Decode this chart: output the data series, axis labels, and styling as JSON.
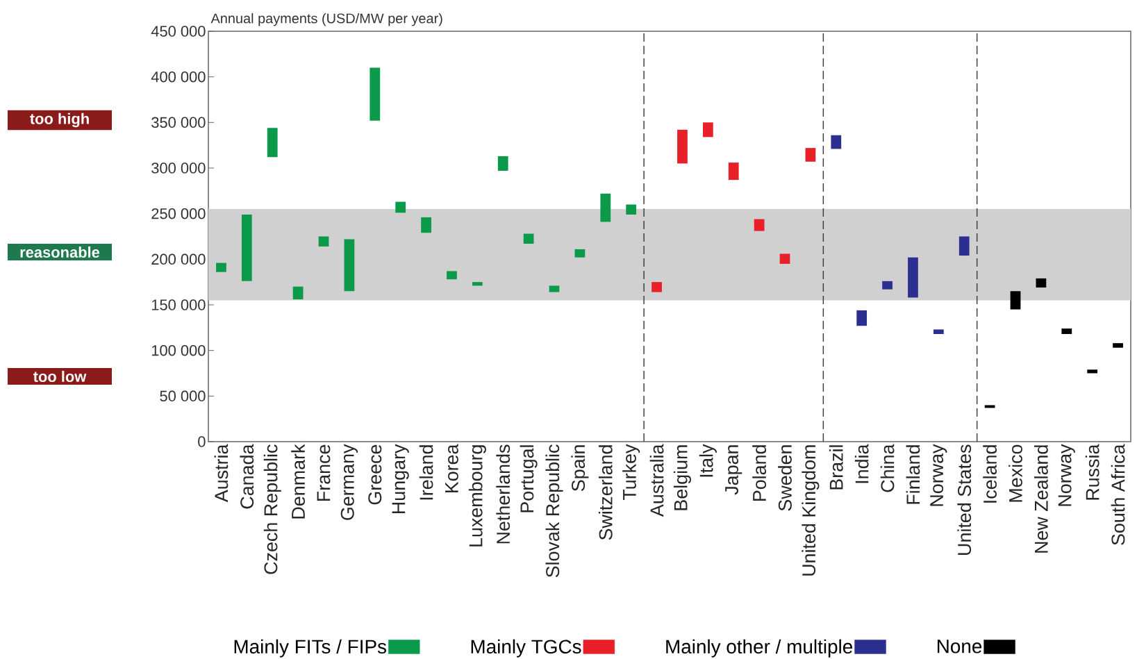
{
  "chart_data": {
    "type": "bar",
    "ylabel": "Annual payments (USD/MW per year)",
    "categories": [
      "Austria",
      "Canada",
      "Czech Republic",
      "Denmark",
      "France",
      "Germany",
      "Greece",
      "Hungary",
      "Ireland",
      "Korea",
      "Luxembourg",
      "Netherlands",
      "Portugal",
      "Slovak Republic",
      "Spain",
      "Switzerland",
      "Turkey",
      "Australia",
      "Belgium",
      "Italy",
      "Japan",
      "Poland",
      "Sweden",
      "United Kingdom",
      "Brazil",
      "India",
      "China",
      "Finland",
      "Norway",
      "United States",
      "Iceland",
      "Mexico",
      "New Zealand",
      "Norway",
      "Russia",
      "South Africa"
    ],
    "series": [
      {
        "name": "Mainly FITs / FIPs",
        "color": "#0a9a4a",
        "base": [
          186000,
          176000,
          312000,
          156000,
          214000,
          165000,
          352000,
          251000,
          229000,
          178000,
          171000,
          297000,
          217000,
          164000,
          202000,
          241000,
          249000,
          null,
          null,
          null,
          null,
          null,
          null,
          null,
          null,
          null,
          null,
          null,
          null,
          null,
          null,
          null,
          null,
          null,
          null,
          null
        ],
        "values": [
          10000,
          73000,
          32000,
          14000,
          11000,
          57000,
          58000,
          12000,
          17000,
          9000,
          4000,
          16000,
          11000,
          7000,
          9000,
          31000,
          11000,
          null,
          null,
          null,
          null,
          null,
          null,
          null,
          null,
          null,
          null,
          null,
          null,
          null,
          null,
          null,
          null,
          null,
          null,
          null
        ]
      },
      {
        "name": "Mainly TGCs",
        "color": "#e8202a",
        "base": [
          null,
          null,
          null,
          null,
          null,
          null,
          null,
          null,
          null,
          null,
          null,
          null,
          null,
          null,
          null,
          null,
          null,
          164000,
          305000,
          334000,
          287000,
          231000,
          195000,
          307000,
          null,
          null,
          null,
          null,
          null,
          null,
          null,
          null,
          null,
          null,
          null,
          null
        ],
        "values": [
          null,
          null,
          null,
          null,
          null,
          null,
          null,
          null,
          null,
          null,
          null,
          null,
          null,
          null,
          null,
          null,
          null,
          11000,
          37000,
          16000,
          19000,
          13000,
          11000,
          15000,
          null,
          null,
          null,
          null,
          null,
          null,
          null,
          null,
          null,
          null,
          null,
          null
        ]
      },
      {
        "name": "Mainly other / multiple",
        "color": "#2b2f8f",
        "base": [
          null,
          null,
          null,
          null,
          null,
          null,
          null,
          null,
          null,
          null,
          null,
          null,
          null,
          null,
          null,
          null,
          null,
          null,
          null,
          null,
          null,
          null,
          null,
          null,
          321000,
          127000,
          167000,
          158000,
          118000,
          204000,
          null,
          null,
          null,
          null,
          null,
          null
        ],
        "values": [
          null,
          null,
          null,
          null,
          null,
          null,
          null,
          null,
          null,
          null,
          null,
          null,
          null,
          null,
          null,
          null,
          null,
          null,
          null,
          null,
          null,
          null,
          null,
          null,
          15000,
          17000,
          9000,
          44000,
          5000,
          21000,
          null,
          null,
          null,
          null,
          null,
          null
        ]
      },
      {
        "name": "None",
        "color": "#000000",
        "base": [
          null,
          null,
          null,
          null,
          null,
          null,
          null,
          null,
          null,
          null,
          null,
          null,
          null,
          null,
          null,
          null,
          null,
          null,
          null,
          null,
          null,
          null,
          null,
          null,
          null,
          null,
          null,
          null,
          null,
          null,
          37000,
          145000,
          169000,
          118000,
          75000,
          103000
        ],
        "values": [
          null,
          null,
          null,
          null,
          null,
          null,
          null,
          null,
          null,
          null,
          null,
          null,
          null,
          null,
          null,
          null,
          null,
          null,
          null,
          null,
          null,
          null,
          null,
          null,
          null,
          null,
          null,
          null,
          null,
          null,
          3000,
          20000,
          10000,
          6000,
          4000,
          5000
        ]
      }
    ],
    "ylim": [
      0,
      450000
    ],
    "yticks": [
      0,
      {
        "value": 50000,
        "label": "50 000"
      },
      {
        "value": 100000,
        "label": "100 000"
      },
      {
        "value": 150000,
        "label": "150 000"
      },
      {
        "value": 200000,
        "label": "200 000"
      },
      {
        "value": 250000,
        "label": "250 000"
      },
      {
        "value": 300000,
        "label": "300 000"
      },
      {
        "value": 350000,
        "label": "350 000"
      },
      {
        "value": 400000,
        "label": "400 000"
      },
      {
        "value": 450000,
        "label": "450 000"
      }
    ],
    "bands": [
      {
        "axis": "y",
        "from": 155000,
        "to": 255000,
        "color": "#d0d0d0"
      }
    ],
    "annotations": [
      "too high",
      "reasonable",
      "too low"
    ],
    "grid": false,
    "legend": "bottom"
  }
}
